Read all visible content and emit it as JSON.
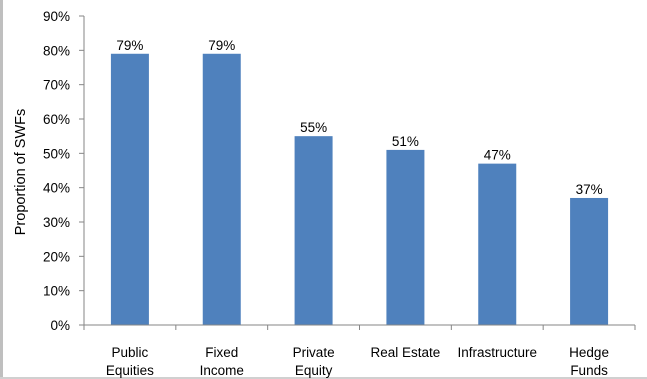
{
  "chart_data": {
    "type": "bar",
    "categories": [
      [
        "Public",
        "Equities"
      ],
      [
        "Fixed",
        "Income"
      ],
      [
        "Private",
        "Equity"
      ],
      [
        "Real Estate"
      ],
      [
        "Infrastructure"
      ],
      [
        "Hedge",
        "Funds"
      ]
    ],
    "values": [
      79,
      79,
      55,
      51,
      47,
      37
    ],
    "data_labels": [
      "79%",
      "79%",
      "55%",
      "51%",
      "47%",
      "37%"
    ],
    "title": "",
    "xlabel": "",
    "ylabel": "Proportion of SWFs",
    "ylim": [
      0,
      90
    ],
    "yticks": [
      0,
      10,
      20,
      30,
      40,
      50,
      60,
      70,
      80,
      90
    ],
    "ytick_labels": [
      "0%",
      "10%",
      "20%",
      "30%",
      "40%",
      "50%",
      "60%",
      "70%",
      "80%",
      "90%"
    ],
    "grid": false,
    "legend": "none",
    "bar_color": "#4f81bd",
    "axis_color": "#868686"
  }
}
